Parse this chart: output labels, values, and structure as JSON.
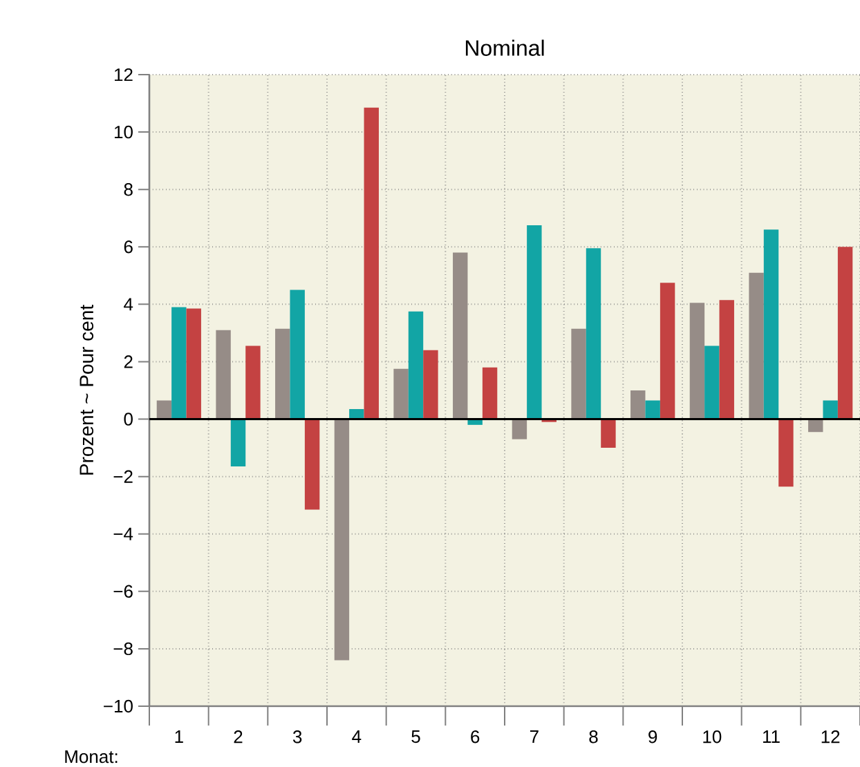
{
  "chart_data": {
    "type": "bar",
    "title": "Nominal",
    "xlabel": "Monat:",
    "ylabel": "Prozent ~ Pour cent",
    "categories": [
      "1",
      "2",
      "3",
      "4",
      "5",
      "6",
      "7",
      "8",
      "9",
      "10",
      "11",
      "12"
    ],
    "series": [
      {
        "color": "#968c87",
        "values": [
          0.65,
          3.1,
          3.15,
          -8.4,
          1.75,
          5.8,
          -0.7,
          3.15,
          1.0,
          4.05,
          5.1,
          -0.45
        ]
      },
      {
        "color": "#12a5a5",
        "values": [
          3.9,
          -1.65,
          4.5,
          0.35,
          3.75,
          -0.2,
          6.75,
          5.95,
          0.65,
          2.55,
          6.6,
          0.65
        ]
      },
      {
        "color": "#c44242",
        "values": [
          3.85,
          2.55,
          -3.15,
          10.85,
          2.4,
          1.8,
          -0.1,
          -1.0,
          4.75,
          4.15,
          -2.35,
          6.0
        ]
      }
    ],
    "ylim": [
      -10,
      12
    ],
    "yticks": [
      {
        "value": -10,
        "label": "−10"
      },
      {
        "value": -8,
        "label": "−8"
      },
      {
        "value": -6,
        "label": "−6"
      },
      {
        "value": -4,
        "label": "−4"
      },
      {
        "value": -2,
        "label": "−2"
      },
      0,
      2,
      4,
      6,
      8,
      10,
      12
    ],
    "grid": true,
    "ref_lines": [
      {
        "axis": "y",
        "value": 0,
        "color": "#000000"
      }
    ]
  }
}
